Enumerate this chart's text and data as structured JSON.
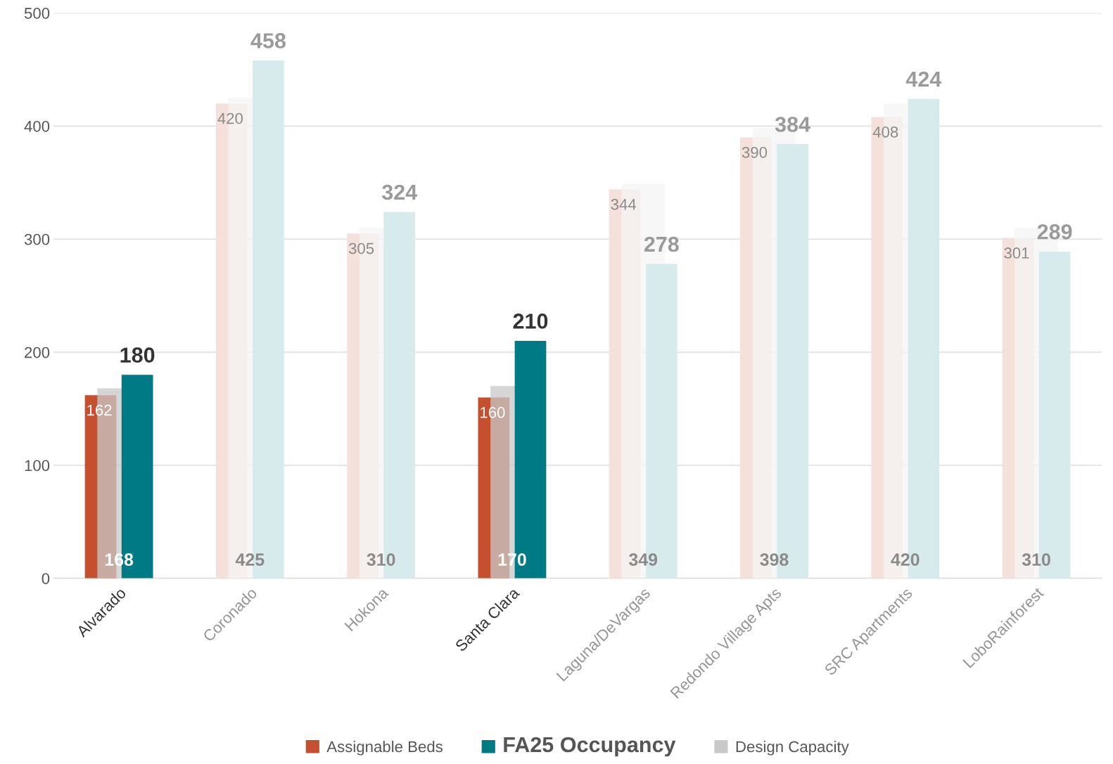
{
  "chart_data": {
    "type": "bar",
    "categories": [
      "Alvarado",
      "Coronado",
      "Hokona",
      "Santa Clara",
      "Laguna/DeVargas",
      "Redondo Village Apts",
      "SRC Apartments",
      "LoboRainforest"
    ],
    "series": [
      {
        "name": "Assignable Beds",
        "color": "#c4502f",
        "colors": [
          "#c4502f",
          "#f5e1dc",
          "#f5e1dc",
          "#c4502f",
          "#f5e1dc",
          "#f5e1dc",
          "#f5e1dc",
          "#f5e1dc"
        ],
        "values": [
          162,
          420,
          305,
          160,
          344,
          390,
          408,
          301
        ]
      },
      {
        "name": "FA25 Occupancy",
        "color": "#007b85",
        "colors": [
          "#007b85",
          "#d7eaec",
          "#d7eaec",
          "#007b85",
          "#d7eaec",
          "#d7eaec",
          "#d7eaec",
          "#d7eaec"
        ],
        "values": [
          180,
          458,
          324,
          210,
          278,
          384,
          424,
          289
        ]
      },
      {
        "name": "Design Capacity",
        "color": "#c8c8c8",
        "colors": [
          "#c8c8c8",
          "#f4f4f4",
          "#f4f4f4",
          "#c8c8c8",
          "#f4f4f4",
          "#f4f4f4",
          "#f4f4f4",
          "#f4f4f4"
        ],
        "values": [
          168,
          425,
          310,
          170,
          349,
          398,
          420,
          310
        ]
      }
    ],
    "ylim": [
      0,
      500
    ],
    "yticks": [
      0,
      100,
      200,
      300,
      400,
      500
    ],
    "grid": "y",
    "legend": "bottom",
    "data_labels": true
  }
}
